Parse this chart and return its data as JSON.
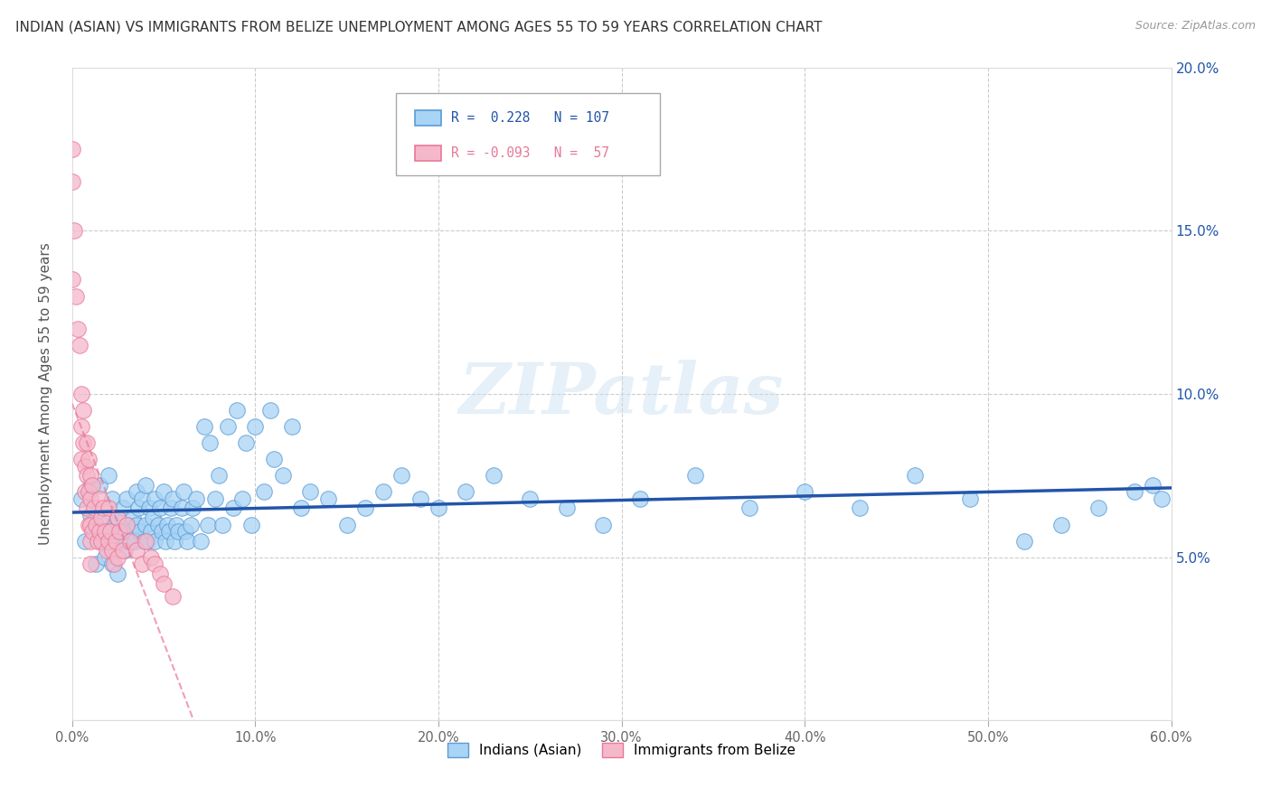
{
  "title": "INDIAN (ASIAN) VS IMMIGRANTS FROM BELIZE UNEMPLOYMENT AMONG AGES 55 TO 59 YEARS CORRELATION CHART",
  "source": "Source: ZipAtlas.com",
  "ylabel": "Unemployment Among Ages 55 to 59 years",
  "xlim": [
    0.0,
    0.6
  ],
  "ylim": [
    0.0,
    0.2
  ],
  "xticks": [
    0.0,
    0.1,
    0.2,
    0.3,
    0.4,
    0.5,
    0.6
  ],
  "yticks": [
    0.0,
    0.05,
    0.1,
    0.15,
    0.2
  ],
  "blue_R": 0.228,
  "blue_N": 107,
  "pink_R": -0.093,
  "pink_N": 57,
  "blue_color": "#a8d4f5",
  "pink_color": "#f5b8cb",
  "blue_edge_color": "#5b9bd5",
  "pink_edge_color": "#e87896",
  "blue_line_color": "#2255aa",
  "pink_line_color": "#e87896",
  "watermark": "ZIPatlas",
  "legend_label_blue": "Indians (Asian)",
  "legend_label_pink": "Immigrants from Belize",
  "blue_scatter_x": [
    0.005,
    0.007,
    0.01,
    0.01,
    0.012,
    0.013,
    0.015,
    0.016,
    0.017,
    0.018,
    0.02,
    0.02,
    0.021,
    0.022,
    0.022,
    0.023,
    0.024,
    0.025,
    0.025,
    0.027,
    0.028,
    0.029,
    0.03,
    0.03,
    0.031,
    0.032,
    0.033,
    0.034,
    0.035,
    0.035,
    0.036,
    0.037,
    0.038,
    0.039,
    0.04,
    0.04,
    0.041,
    0.042,
    0.043,
    0.044,
    0.045,
    0.045,
    0.047,
    0.048,
    0.049,
    0.05,
    0.051,
    0.052,
    0.053,
    0.054,
    0.055,
    0.056,
    0.057,
    0.058,
    0.06,
    0.061,
    0.062,
    0.063,
    0.065,
    0.066,
    0.068,
    0.07,
    0.072,
    0.074,
    0.075,
    0.078,
    0.08,
    0.082,
    0.085,
    0.088,
    0.09,
    0.093,
    0.095,
    0.098,
    0.1,
    0.105,
    0.108,
    0.11,
    0.115,
    0.12,
    0.125,
    0.13,
    0.14,
    0.15,
    0.16,
    0.17,
    0.18,
    0.19,
    0.2,
    0.215,
    0.23,
    0.25,
    0.27,
    0.29,
    0.31,
    0.34,
    0.37,
    0.4,
    0.43,
    0.46,
    0.49,
    0.52,
    0.54,
    0.56,
    0.58,
    0.59,
    0.595
  ],
  "blue_scatter_y": [
    0.068,
    0.055,
    0.063,
    0.072,
    0.058,
    0.048,
    0.072,
    0.055,
    0.06,
    0.05,
    0.075,
    0.058,
    0.055,
    0.068,
    0.048,
    0.06,
    0.055,
    0.062,
    0.045,
    0.058,
    0.065,
    0.052,
    0.068,
    0.055,
    0.06,
    0.058,
    0.062,
    0.055,
    0.07,
    0.06,
    0.065,
    0.058,
    0.068,
    0.055,
    0.072,
    0.06,
    0.055,
    0.065,
    0.058,
    0.062,
    0.068,
    0.055,
    0.06,
    0.065,
    0.058,
    0.07,
    0.055,
    0.06,
    0.058,
    0.065,
    0.068,
    0.055,
    0.06,
    0.058,
    0.065,
    0.07,
    0.058,
    0.055,
    0.06,
    0.065,
    0.068,
    0.055,
    0.09,
    0.06,
    0.085,
    0.068,
    0.075,
    0.06,
    0.09,
    0.065,
    0.095,
    0.068,
    0.085,
    0.06,
    0.09,
    0.07,
    0.095,
    0.08,
    0.075,
    0.09,
    0.065,
    0.07,
    0.068,
    0.06,
    0.065,
    0.07,
    0.075,
    0.068,
    0.065,
    0.07,
    0.075,
    0.068,
    0.065,
    0.06,
    0.068,
    0.075,
    0.065,
    0.07,
    0.065,
    0.075,
    0.068,
    0.055,
    0.06,
    0.065,
    0.07,
    0.072,
    0.068
  ],
  "pink_scatter_x": [
    0.0,
    0.0,
    0.0,
    0.001,
    0.002,
    0.003,
    0.004,
    0.005,
    0.005,
    0.005,
    0.006,
    0.006,
    0.007,
    0.007,
    0.008,
    0.008,
    0.008,
    0.009,
    0.009,
    0.009,
    0.01,
    0.01,
    0.01,
    0.01,
    0.01,
    0.011,
    0.011,
    0.012,
    0.013,
    0.014,
    0.015,
    0.015,
    0.016,
    0.016,
    0.017,
    0.018,
    0.019,
    0.02,
    0.02,
    0.021,
    0.022,
    0.023,
    0.024,
    0.025,
    0.025,
    0.026,
    0.028,
    0.03,
    0.032,
    0.035,
    0.038,
    0.04,
    0.043,
    0.045,
    0.048,
    0.05,
    0.055
  ],
  "pink_scatter_y": [
    0.175,
    0.165,
    0.135,
    0.15,
    0.13,
    0.12,
    0.115,
    0.1,
    0.09,
    0.08,
    0.095,
    0.085,
    0.078,
    0.07,
    0.085,
    0.075,
    0.065,
    0.08,
    0.07,
    0.06,
    0.075,
    0.068,
    0.06,
    0.055,
    0.048,
    0.072,
    0.058,
    0.065,
    0.06,
    0.055,
    0.068,
    0.058,
    0.062,
    0.055,
    0.065,
    0.058,
    0.052,
    0.065,
    0.055,
    0.058,
    0.052,
    0.048,
    0.055,
    0.062,
    0.05,
    0.058,
    0.052,
    0.06,
    0.055,
    0.052,
    0.048,
    0.055,
    0.05,
    0.048,
    0.045,
    0.042,
    0.038
  ]
}
